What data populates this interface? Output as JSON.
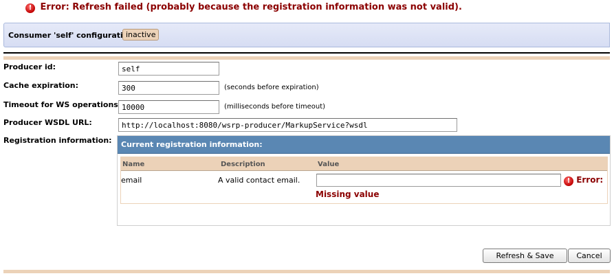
{
  "error_banner": {
    "icon": "error-icon",
    "text": "Error: Refresh failed (probably because the registration information was not valid)."
  },
  "header": {
    "title": "Consumer 'self' configuration",
    "status": "inactive"
  },
  "form": {
    "producer_id": {
      "label": "Producer id:",
      "value": "self"
    },
    "cache": {
      "label": "Cache expiration:",
      "value": "300",
      "hint": "(seconds before expiration)"
    },
    "timeout": {
      "label": "Timeout for WS operations:",
      "value": "10000",
      "hint": "(milliseconds before timeout)"
    },
    "wsdl": {
      "label": "Producer WSDL URL:",
      "value": "http://localhost:8080/wsrp-producer/MarkupService?wsdl"
    },
    "registration": {
      "label": "Registration information:",
      "box_title": "Current registration information:",
      "columns": [
        "Name",
        "Description",
        "Value"
      ],
      "rows": [
        {
          "name": "email",
          "description": "A valid contact email.",
          "value": "",
          "error_label": "Error:",
          "error_message": "Missing value"
        }
      ]
    }
  },
  "buttons": {
    "refresh_save": "Refresh & Save",
    "cancel": "Cancel"
  },
  "colors": {
    "error": "#8b0000",
    "header_bg": "#dde3f6",
    "accent_tan": "#ecd2b8",
    "reg_header": "#5a87b3"
  }
}
